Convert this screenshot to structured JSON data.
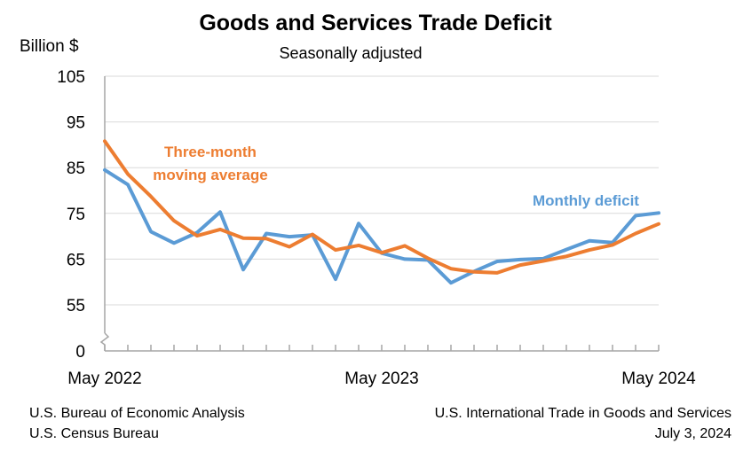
{
  "chart_data": {
    "type": "line",
    "title": "Goods and Services Trade Deficit",
    "subtitle": "Seasonally adjusted",
    "ylabel": "Billion $",
    "xlabel": "",
    "yticks": [
      0,
      55,
      65,
      75,
      85,
      95,
      105
    ],
    "ylim_broken": [
      45,
      105
    ],
    "y_axis_break": true,
    "grid": true,
    "x": [
      "May 2022",
      "Jun 2022",
      "Jul 2022",
      "Aug 2022",
      "Sep 2022",
      "Oct 2022",
      "Nov 2022",
      "Dec 2022",
      "Jan 2023",
      "Feb 2023",
      "Mar 2023",
      "Apr 2023",
      "May 2023",
      "Jun 2023",
      "Jul 2023",
      "Aug 2023",
      "Sep 2023",
      "Oct 2023",
      "Nov 2023",
      "Dec 2023",
      "Jan 2024",
      "Feb 2024",
      "Mar 2024",
      "Apr 2024",
      "May 2024"
    ],
    "x_tick_labels": [
      "May 2022",
      "May 2023",
      "May 2024"
    ],
    "series": [
      {
        "name": "Monthly deficit",
        "color": "#5b9bd5",
        "values": [
          84.5,
          81.3,
          71.0,
          68.5,
          70.8,
          75.3,
          62.7,
          70.6,
          69.9,
          70.3,
          60.6,
          72.8,
          66.3,
          65.0,
          64.8,
          59.8,
          62.3,
          64.5,
          64.9,
          65.1,
          67.1,
          69.0,
          68.6,
          74.5,
          75.1
        ]
      },
      {
        "name": "Three-month moving average",
        "color": "#ed7d31",
        "values": [
          90.8,
          83.6,
          78.7,
          73.4,
          70.1,
          71.5,
          69.6,
          69.5,
          67.7,
          70.4,
          67.0,
          68.0,
          66.4,
          67.9,
          65.2,
          62.9,
          62.2,
          62.0,
          63.7,
          64.6,
          65.6,
          67.0,
          68.1,
          70.6,
          72.7
        ]
      }
    ],
    "annotations": [
      {
        "text_line1": "Three-month",
        "text_line2": "moving average",
        "series": "Three-month moving average",
        "position": "upper-left"
      },
      {
        "text_line1": "Monthly deficit",
        "series": "Monthly deficit",
        "position": "upper-right"
      }
    ]
  },
  "footer": {
    "left_line1": "U.S. Bureau of Economic Analysis",
    "left_line2": "U.S. Census Bureau",
    "right_line1": "U.S. International Trade in Goods and Services",
    "right_line2": "July 3, 2024"
  }
}
